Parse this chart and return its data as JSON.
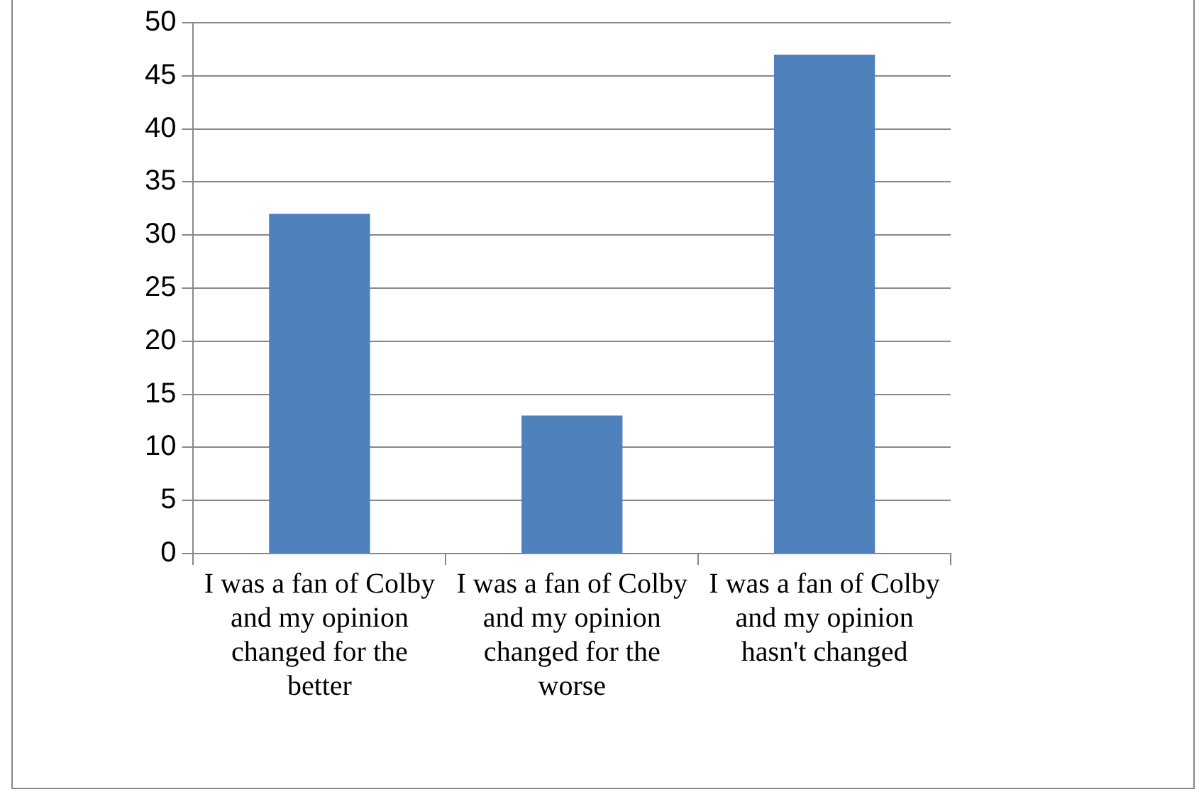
{
  "chart_data": {
    "type": "bar",
    "categories": [
      "I was a fan of Colby and my opinion changed for the better",
      "I was a fan of Colby and my opinion changed for the worse",
      "I was a fan of Colby and my opinion hasn't changed"
    ],
    "values": [
      32,
      13,
      47
    ],
    "color": "#4f81bd",
    "ylim": [
      0,
      50
    ],
    "yticks": [
      0,
      5,
      10,
      15,
      20,
      25,
      30,
      35,
      40,
      45,
      50
    ],
    "grid": "y",
    "legend": false
  }
}
